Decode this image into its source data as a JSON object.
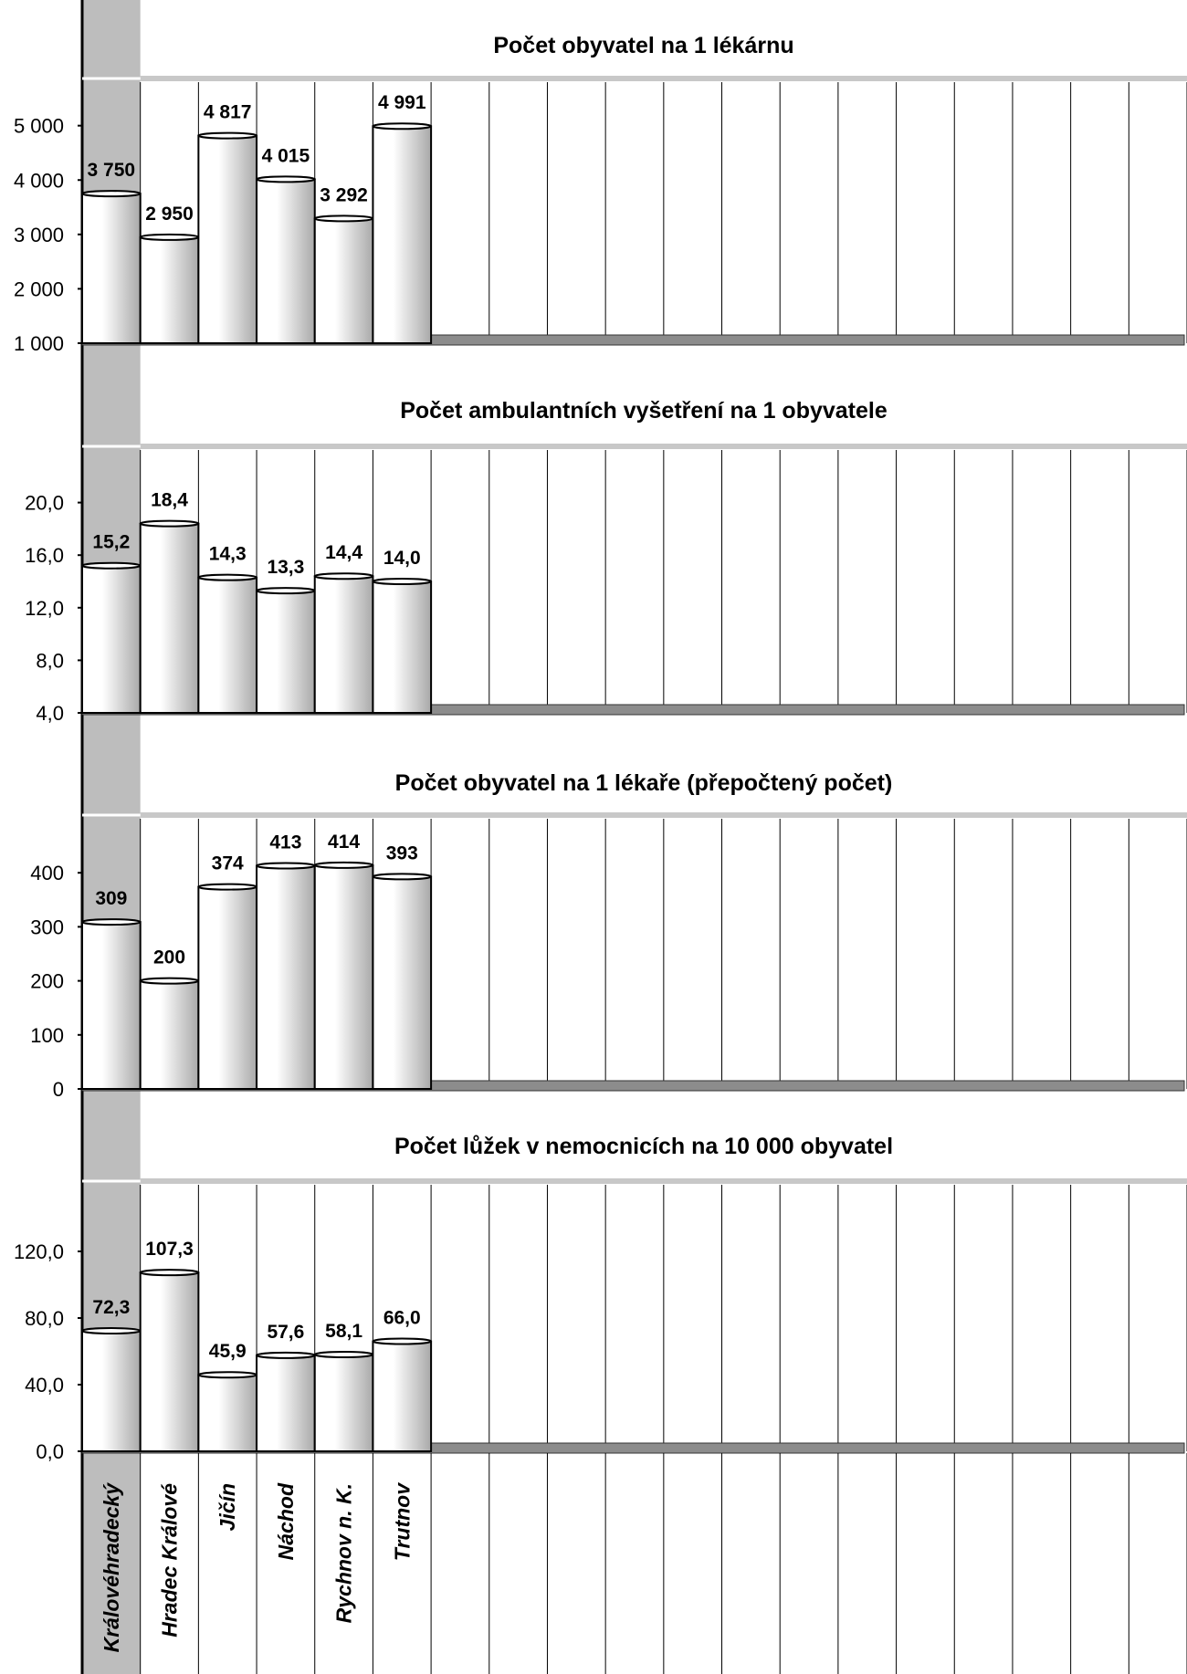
{
  "colors": {
    "band": "#bdbdbd",
    "floor": "#8c8c8c",
    "grid": "#000000",
    "bar_light": "#ffffff",
    "bar_dark": "#a9a9a9"
  },
  "categories": [
    "Královéhradecký",
    "Hradec Králové",
    "Jičín",
    "Náchod",
    "Rychnov n. K.",
    "Trutnov"
  ],
  "chart_data": [
    {
      "type": "bar",
      "title": "Počet obyvatel na 1 lékárnu",
      "categories": [
        "Královéhradecký",
        "Hradec Králové",
        "Jičín",
        "Náchod",
        "Rychnov n. K.",
        "Trutnov"
      ],
      "values": [
        3750,
        2950,
        4817,
        4015,
        3292,
        4991
      ],
      "value_labels": [
        "3 750",
        "2 950",
        "4 817",
        "4 015",
        "3 292",
        "4 991"
      ],
      "yticks": [
        1000,
        2000,
        3000,
        4000,
        5000
      ],
      "ytick_labels": [
        "1 000",
        "2 000",
        "3 000",
        "4 000",
        "5 000"
      ],
      "ylim": [
        1000,
        5800
      ],
      "grid": true,
      "legend": "none"
    },
    {
      "type": "bar",
      "title": "Počet ambulantních vyšetření na 1 obyvatele",
      "categories": [
        "Královéhradecký",
        "Hradec Králové",
        "Jičín",
        "Náchod",
        "Rychnov n. K.",
        "Trutnov"
      ],
      "values": [
        15.2,
        18.4,
        14.3,
        13.3,
        14.4,
        14.0
      ],
      "value_labels": [
        "15,2",
        "18,4",
        "14,3",
        "13,3",
        "14,4",
        "14,0"
      ],
      "yticks": [
        4,
        8,
        12,
        16,
        20
      ],
      "ytick_labels": [
        "4,0",
        "8,0",
        "12,0",
        "16,0",
        "20,0"
      ],
      "ylim": [
        4,
        24
      ],
      "grid": true,
      "legend": "none"
    },
    {
      "type": "bar",
      "title": "Počet obyvatel na 1 lékaře (přepočtený počet)",
      "categories": [
        "Královéhradecký",
        "Hradec Králové",
        "Jičín",
        "Náchod",
        "Rychnov n. K.",
        "Trutnov"
      ],
      "values": [
        309,
        200,
        374,
        413,
        414,
        393
      ],
      "value_labels": [
        "309",
        "200",
        "374",
        "413",
        "414",
        "393"
      ],
      "yticks": [
        0,
        100,
        200,
        300,
        400
      ],
      "ytick_labels": [
        "0",
        "100",
        "200",
        "300",
        "400"
      ],
      "ylim": [
        0,
        500
      ],
      "grid": true,
      "legend": "none"
    },
    {
      "type": "bar",
      "title": "Počet lůžek v nemocnicích na 10 000 obyvatel",
      "categories": [
        "Královéhradecký",
        "Hradec Králové",
        "Jičín",
        "Náchod",
        "Rychnov n. K.",
        "Trutnov"
      ],
      "values": [
        72.3,
        107.3,
        45.9,
        57.6,
        58.1,
        66.0
      ],
      "value_labels": [
        "72,3",
        "107,3",
        "45,9",
        "57,6",
        "58,1",
        "66,0"
      ],
      "yticks": [
        0,
        40,
        80,
        120
      ],
      "ytick_labels": [
        "0,0",
        "40,0",
        "80,0",
        "120,0"
      ],
      "ylim": [
        0,
        160
      ],
      "grid": true,
      "legend": "none"
    }
  ]
}
